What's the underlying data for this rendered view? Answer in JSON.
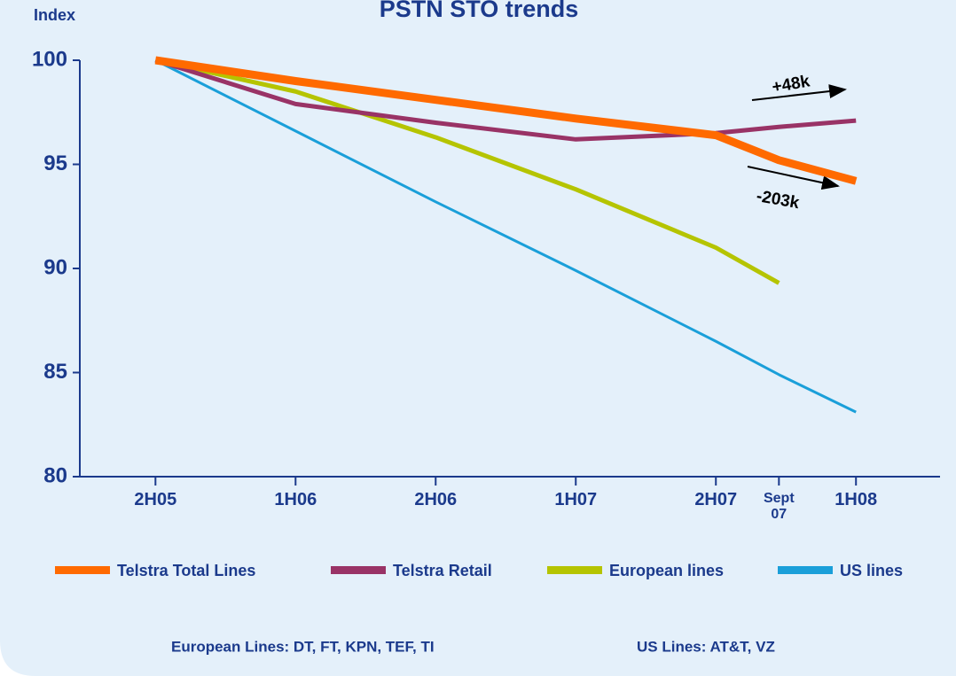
{
  "chart_data": {
    "type": "line",
    "title": "PSTN STO trends",
    "y_label": "Index",
    "x": [
      0,
      1,
      2,
      3,
      4,
      4.45,
      5
    ],
    "xlim": [
      -0.54,
      5.6
    ],
    "xticks": [
      {
        "value": 0,
        "label": "2H05"
      },
      {
        "value": 1,
        "label": "1H06"
      },
      {
        "value": 2,
        "label": "2H06"
      },
      {
        "value": 3,
        "label": "1H07"
      },
      {
        "value": 4,
        "label": "2H07"
      },
      {
        "value": 4.45,
        "label": "Sept 07"
      },
      {
        "value": 5,
        "label": "1H08"
      }
    ],
    "ylim": [
      80,
      100
    ],
    "yticks": [
      80,
      85,
      90,
      95,
      100
    ],
    "series": [
      {
        "name": "Telstra Total Lines",
        "color": "#ff6a00",
        "width": 9,
        "values": [
          100,
          99.0,
          98.1,
          97.2,
          96.4,
          95.2,
          94.2
        ]
      },
      {
        "name": "Telstra Retail",
        "color": "#993366",
        "width": 5,
        "values": [
          100,
          97.9,
          97.0,
          96.2,
          96.5,
          96.8,
          97.1
        ]
      },
      {
        "name": "European lines",
        "color": "#b5c400",
        "width": 5,
        "values": [
          100,
          98.5,
          96.3,
          93.8,
          91.0,
          89.3,
          null
        ]
      },
      {
        "name": "US lines",
        "color": "#1a9fd9",
        "width": 3,
        "values": [
          100,
          96.6,
          93.2,
          89.9,
          86.5,
          84.9,
          83.1
        ]
      }
    ],
    "annotations": [
      "+48k",
      "-203k"
    ],
    "footnotes": [
      "European Lines:  DT, FT, KPN, TEF, TI",
      "US Lines: AT&T, VZ"
    ]
  }
}
